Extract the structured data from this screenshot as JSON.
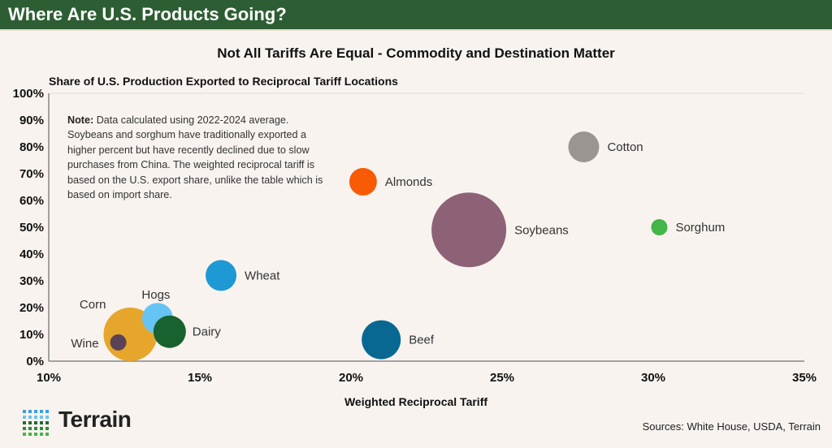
{
  "header": {
    "title": "Where Are U.S. Products Going?"
  },
  "chart_data": {
    "type": "scatter",
    "subtitle": "Not All Tariffs Are Equal - Commodity and Destination Matter",
    "ylabel": "Share of U.S. Production Exported to Reciprocal Tariff Locations",
    "xlabel": "Weighted Reciprocal Tariff",
    "xlim": [
      10,
      35
    ],
    "ylim": [
      0,
      100
    ],
    "x_ticks": [
      "10%",
      "15%",
      "20%",
      "25%",
      "30%",
      "35%"
    ],
    "y_ticks": [
      "0%",
      "10%",
      "20%",
      "30%",
      "40%",
      "50%",
      "60%",
      "70%",
      "80%",
      "90%",
      "100%"
    ],
    "grid": false,
    "legend": "none",
    "points": [
      {
        "name": "Corn",
        "x": 12.7,
        "y": 10,
        "size": 33,
        "color": "#e6a62b"
      },
      {
        "name": "Hogs",
        "x": 13.6,
        "y": 16,
        "size": 19,
        "color": "#66c4f5"
      },
      {
        "name": "Dairy",
        "x": 14.0,
        "y": 11,
        "size": 20,
        "color": "#18622f"
      },
      {
        "name": "Wine",
        "x": 12.3,
        "y": 7,
        "size": 10,
        "color": "#5a4356"
      },
      {
        "name": "Wheat",
        "x": 15.7,
        "y": 32,
        "size": 19,
        "color": "#1e99d3"
      },
      {
        "name": "Almonds",
        "x": 20.4,
        "y": 67,
        "size": 17,
        "color": "#f95a06"
      },
      {
        "name": "Beef",
        "x": 21.0,
        "y": 8,
        "size": 24,
        "color": "#086892"
      },
      {
        "name": "Soybeans",
        "x": 23.9,
        "y": 49,
        "size": 46,
        "color": "#8e6276"
      },
      {
        "name": "Cotton",
        "x": 27.7,
        "y": 80,
        "size": 19,
        "color": "#9a9591"
      },
      {
        "name": "Sorghum",
        "x": 30.2,
        "y": 50,
        "size": 10,
        "color": "#42b649"
      }
    ]
  },
  "note": {
    "label": "Note:",
    "text": "Data calculated using 2022-2024 average. Soybeans and sorghum have traditionally exported a higher percent but have recently declined due to slow purchases from China. The weighted reciprocal tariff is based on the U.S. export share, unlike the table which is based on import share."
  },
  "footer": {
    "logo": "Terrain",
    "sources": "Sources: White House, USDA, Terrain"
  },
  "colors": {
    "banner": "#2d5e33",
    "background": "#f8f3ef"
  }
}
